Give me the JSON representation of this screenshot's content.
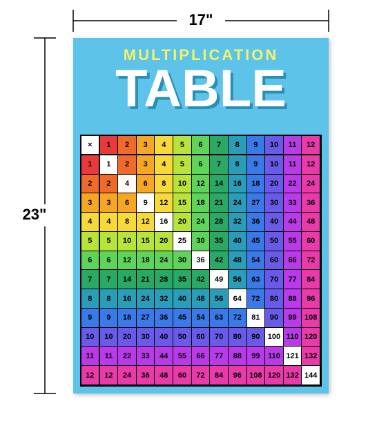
{
  "dimensions": {
    "width_label": "17\"",
    "height_label": "23\""
  },
  "poster": {
    "background": "#5ec3e8",
    "subtitle": "MULTIPLICATION",
    "subtitle_color": "#f4f26a",
    "title": "TABLE",
    "title_color": "#ffffff",
    "title_shadow": "#2a8fb5"
  },
  "table": {
    "symbol": "×",
    "size": 12,
    "header_bg": "#ffffff",
    "colors": {
      "1": "#e83a3a",
      "2": "#f06a2a",
      "3": "#f5a623",
      "4": "#f7d93a",
      "5": "#b8e43a",
      "6": "#5ed45a",
      "7": "#2aa866",
      "8": "#2a9eb8",
      "9": "#3a7ae8",
      "10": "#6a5ae8",
      "11": "#b83ae8",
      "12": "#e83aa8"
    },
    "diagonal_bg": "#ffffff"
  }
}
